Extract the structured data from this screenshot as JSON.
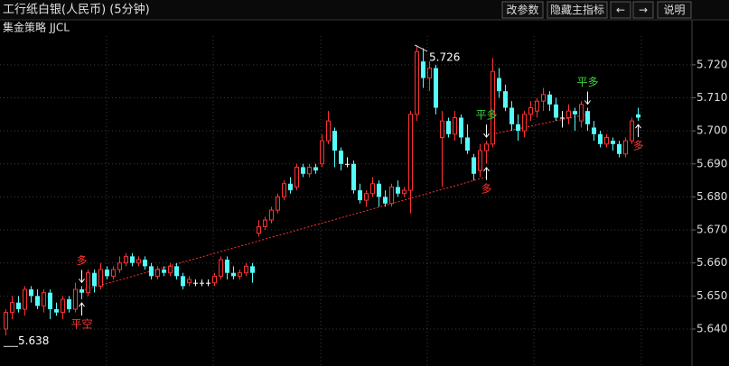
{
  "toolbar": {
    "title": "工行纸白银(人民币) (5分钟)",
    "buttons": [
      "改参数",
      "隐藏主指标",
      "←",
      "→",
      "说明"
    ]
  },
  "chart_data": {
    "type": "candlestick",
    "subtitle": "集金策略 JJCL",
    "up_color": "#ff3232",
    "down_color": "#54fcfc",
    "flat_color": "#ffffff",
    "grid": true,
    "ylim": [
      5.6288,
      5.7287
    ],
    "yticks": [
      {
        "value": 5.64,
        "label": "5.640"
      },
      {
        "value": 5.65,
        "label": "5.650"
      },
      {
        "value": 5.66,
        "label": "5.660"
      },
      {
        "value": 5.67,
        "label": "5.670"
      },
      {
        "value": 5.68,
        "label": "5.680"
      },
      {
        "value": 5.69,
        "label": "5.690"
      },
      {
        "value": 5.7,
        "label": "5.700"
      },
      {
        "value": 5.71,
        "label": "5.710"
      },
      {
        "value": 5.72,
        "label": "5.720"
      }
    ],
    "open": [
      5.64,
      5.645,
      5.648,
      5.646,
      5.652,
      5.65,
      5.647,
      5.651,
      5.646,
      5.645,
      5.649,
      5.646,
      5.652,
      5.651,
      5.657,
      5.653,
      5.658,
      5.656,
      5.658,
      5.66,
      5.662,
      5.66,
      5.661,
      5.659,
      5.656,
      5.658,
      5.657,
      5.659,
      5.656,
      5.654,
      5.654,
      5.654,
      5.654,
      5.654,
      5.656,
      5.661,
      5.657,
      5.656,
      5.657,
      5.659,
      5.669,
      5.671,
      5.673,
      5.676,
      5.68,
      5.684,
      5.683,
      5.689,
      5.687,
      5.689,
      5.69,
      5.697,
      5.7,
      5.694,
      5.69,
      5.69,
      5.682,
      5.679,
      5.681,
      5.684,
      5.68,
      5.678,
      5.683,
      5.681,
      5.682,
      5.705,
      5.721,
      5.716,
      5.719,
      5.698,
      5.703,
      5.699,
      5.704,
      5.698,
      5.692,
      5.688,
      5.694,
      5.696,
      5.716,
      5.712,
      5.707,
      5.702,
      5.7,
      5.705,
      5.706,
      5.709,
      5.711,
      5.708,
      5.704,
      5.704,
      5.706,
      5.703,
      5.706,
      5.701,
      5.699,
      5.696,
      5.697,
      5.696,
      5.693,
      5.697,
      5.705
    ],
    "high": [
      5.646,
      5.65,
      5.65,
      5.653,
      5.653,
      5.652,
      5.652,
      5.652,
      5.648,
      5.65,
      5.65,
      5.654,
      5.653,
      5.658,
      5.658,
      5.66,
      5.659,
      5.659,
      5.662,
      5.663,
      5.663,
      5.662,
      5.662,
      5.66,
      5.659,
      5.659,
      5.66,
      5.66,
      5.657,
      5.656,
      5.655,
      5.655,
      5.655,
      5.657,
      5.662,
      5.662,
      5.659,
      5.658,
      5.66,
      5.66,
      5.673,
      5.674,
      5.677,
      5.681,
      5.685,
      5.686,
      5.69,
      5.69,
      5.69,
      5.69,
      5.699,
      5.706,
      5.701,
      5.695,
      5.692,
      5.691,
      5.684,
      5.682,
      5.686,
      5.685,
      5.682,
      5.684,
      5.685,
      5.683,
      5.706,
      5.726,
      5.725,
      5.721,
      5.72,
      5.706,
      5.704,
      5.706,
      5.705,
      5.702,
      5.693,
      5.696,
      5.697,
      5.722,
      5.719,
      5.714,
      5.709,
      5.705,
      5.706,
      5.709,
      5.71,
      5.713,
      5.712,
      5.71,
      5.706,
      5.708,
      5.707,
      5.709,
      5.707,
      5.703,
      5.7,
      5.699,
      5.698,
      5.697,
      5.698,
      5.704,
      5.707
    ],
    "low": [
      5.638,
      5.643,
      5.645,
      5.644,
      5.648,
      5.646,
      5.645,
      5.643,
      5.644,
      5.643,
      5.645,
      5.645,
      5.649,
      5.65,
      5.651,
      5.652,
      5.655,
      5.655,
      5.657,
      5.659,
      5.659,
      5.659,
      5.658,
      5.655,
      5.655,
      5.656,
      5.656,
      5.655,
      5.652,
      5.653,
      5.653,
      5.653,
      5.653,
      5.653,
      5.655,
      5.655,
      5.655,
      5.655,
      5.656,
      5.654,
      5.668,
      5.67,
      5.672,
      5.675,
      5.679,
      5.681,
      5.682,
      5.686,
      5.686,
      5.687,
      5.689,
      5.696,
      5.689,
      5.688,
      5.689,
      5.681,
      5.678,
      5.677,
      5.68,
      5.677,
      5.677,
      5.677,
      5.68,
      5.68,
      5.675,
      5.703,
      5.713,
      5.712,
      5.705,
      5.683,
      5.698,
      5.697,
      5.696,
      5.693,
      5.685,
      5.686,
      5.69,
      5.695,
      5.71,
      5.706,
      5.7,
      5.697,
      5.698,
      5.703,
      5.704,
      5.706,
      5.706,
      5.703,
      5.701,
      5.702,
      5.7,
      5.701,
      5.7,
      5.697,
      5.695,
      5.695,
      5.694,
      5.692,
      5.692,
      5.696,
      5.703
    ],
    "close": [
      5.645,
      5.648,
      5.646,
      5.652,
      5.65,
      5.647,
      5.651,
      5.646,
      5.645,
      5.649,
      5.646,
      5.652,
      5.651,
      5.657,
      5.653,
      5.658,
      5.656,
      5.658,
      5.66,
      5.662,
      5.66,
      5.661,
      5.659,
      5.656,
      5.658,
      5.657,
      5.659,
      5.656,
      5.653,
      5.655,
      5.654,
      5.654,
      5.654,
      5.656,
      5.661,
      5.657,
      5.656,
      5.657,
      5.659,
      5.657,
      5.671,
      5.673,
      5.676,
      5.68,
      5.684,
      5.682,
      5.689,
      5.687,
      5.689,
      5.688,
      5.697,
      5.703,
      5.694,
      5.69,
      5.69,
      5.682,
      5.679,
      5.681,
      5.684,
      5.68,
      5.678,
      5.683,
      5.681,
      5.682,
      5.705,
      5.724,
      5.716,
      5.719,
      5.707,
      5.703,
      5.699,
      5.704,
      5.698,
      5.694,
      5.687,
      5.694,
      5.696,
      5.718,
      5.712,
      5.707,
      5.702,
      5.7,
      5.705,
      5.707,
      5.709,
      5.711,
      5.708,
      5.704,
      5.704,
      5.706,
      5.705,
      5.708,
      5.702,
      5.699,
      5.696,
      5.698,
      5.696,
      5.693,
      5.697,
      5.703,
      5.704
    ],
    "extremes": [
      {
        "text": "5.726",
        "index": 65,
        "side": "above"
      },
      {
        "text": "5.638",
        "index": 0,
        "side": "below"
      }
    ],
    "signals": [
      {
        "text": "多",
        "color": "#ff3232",
        "index": 12,
        "side": "above"
      },
      {
        "text": "平空",
        "color": "#ff3232",
        "index": 12,
        "side": "below"
      },
      {
        "text": "平多",
        "color": "#3cd23c",
        "index": 76,
        "side": "above"
      },
      {
        "text": "多",
        "color": "#ff3232",
        "index": 76,
        "side": "below"
      },
      {
        "text": "平多",
        "color": "#3cd23c",
        "index": 92,
        "side": "above"
      },
      {
        "text": "多",
        "color": "#ff3232",
        "index": 100,
        "side": "below"
      }
    ],
    "trendlines": [
      {
        "from": [
          12,
          5.6516
        ],
        "to": [
          76,
          5.686
        ]
      },
      {
        "from": [
          77,
          5.699
        ],
        "to": [
          92,
          5.705
        ]
      }
    ]
  }
}
